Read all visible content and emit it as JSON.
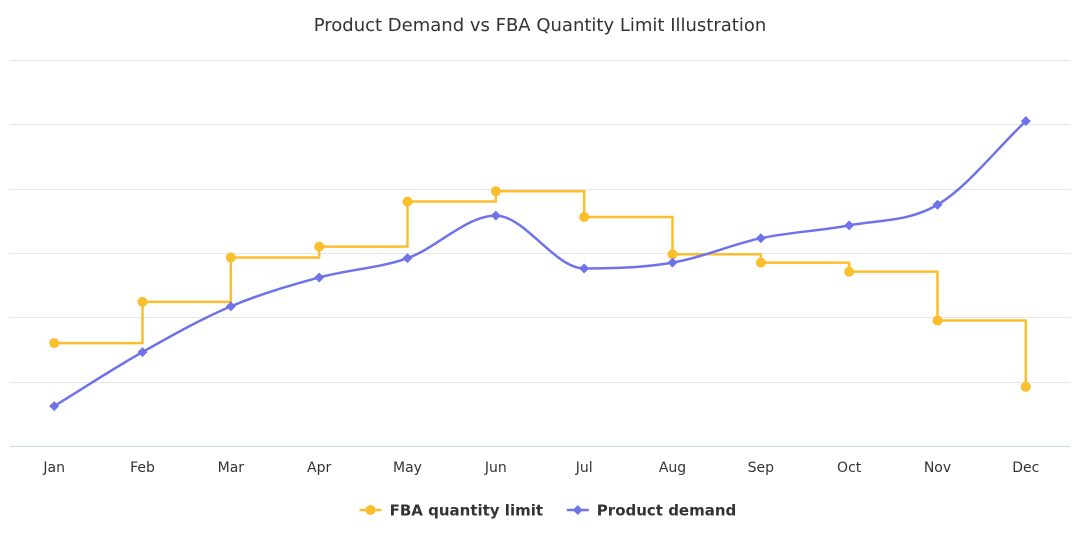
{
  "chart_data": {
    "type": "line",
    "title": "Product Demand vs FBA Quantity Limit Illustration",
    "xlabel": "",
    "ylabel": "",
    "ylim": [
      0,
      6
    ],
    "grid": true,
    "legend_position": "bottom-center",
    "categories": [
      "Jan",
      "Feb",
      "Mar",
      "Apr",
      "May",
      "Jun",
      "Jul",
      "Aug",
      "Sep",
      "Oct",
      "Nov",
      "Dec"
    ],
    "series": [
      {
        "name": "FBA quantity limit",
        "color": "#FBBF2E",
        "style": "step-after",
        "marker": "circle",
        "values": [
          1.6,
          2.24,
          2.93,
          3.1,
          3.8,
          3.96,
          3.56,
          2.98,
          2.85,
          2.71,
          1.95,
          0.92
        ]
      },
      {
        "name": "Product demand",
        "color": "#6F73E9",
        "style": "smooth",
        "marker": "diamond",
        "values": [
          0.62,
          1.46,
          2.17,
          2.62,
          2.92,
          3.58,
          2.76,
          2.85,
          3.23,
          3.43,
          3.75,
          5.05
        ]
      }
    ]
  }
}
